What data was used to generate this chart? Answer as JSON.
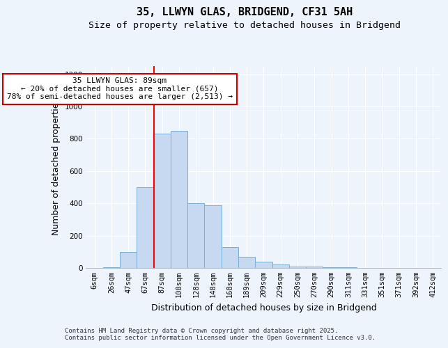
{
  "title1": "35, LLWYN GLAS, BRIDGEND, CF31 5AH",
  "title2": "Size of property relative to detached houses in Bridgend",
  "xlabel": "Distribution of detached houses by size in Bridgend",
  "ylabel": "Number of detached properties",
  "footnote": "Contains HM Land Registry data © Crown copyright and database right 2025.\nContains public sector information licensed under the Open Government Licence v3.0.",
  "categories": [
    "6sqm",
    "26sqm",
    "47sqm",
    "67sqm",
    "87sqm",
    "108sqm",
    "128sqm",
    "148sqm",
    "168sqm",
    "189sqm",
    "209sqm",
    "229sqm",
    "250sqm",
    "270sqm",
    "290sqm",
    "311sqm",
    "331sqm",
    "351sqm",
    "371sqm",
    "392sqm",
    "412sqm"
  ],
  "values": [
    2,
    5,
    100,
    500,
    830,
    850,
    400,
    390,
    130,
    70,
    40,
    20,
    10,
    7,
    5,
    3,
    2,
    2,
    1,
    0,
    1
  ],
  "bar_color": "#c6d9f0",
  "bar_edge_color": "#7aadd4",
  "red_line_x": 3.5,
  "annotation_text": "35 LLWYN GLAS: 89sqm\n← 20% of detached houses are smaller (657)\n78% of semi-detached houses are larger (2,513) →",
  "annotation_box_color": "#ffffff",
  "annotation_box_edge": "#cc0000",
  "ylim": [
    0,
    1250
  ],
  "yticks": [
    0,
    200,
    400,
    600,
    800,
    1000,
    1200
  ],
  "background_color": "#eef4fb",
  "title_fontsize": 11,
  "subtitle_fontsize": 9.5,
  "axis_label_fontsize": 9,
  "tick_fontsize": 7.5,
  "annotation_fontsize": 8,
  "footnote_fontsize": 6.5,
  "grid_color": "#d0dded"
}
